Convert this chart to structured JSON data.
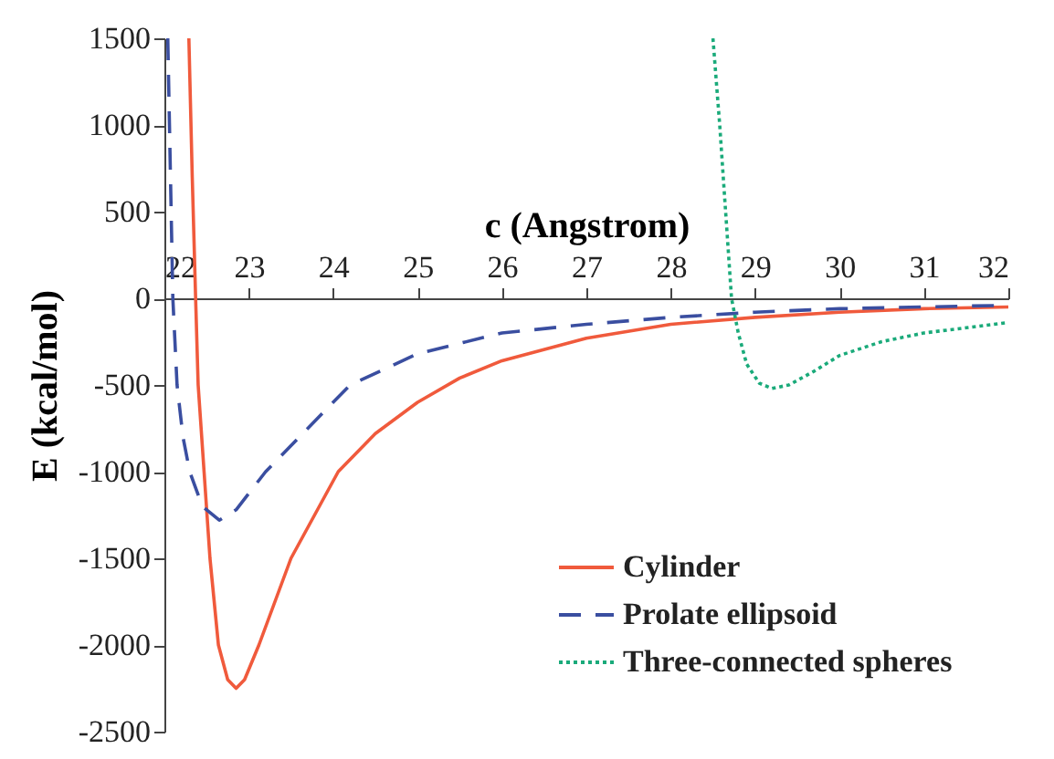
{
  "chart_data": {
    "type": "line",
    "xlabel": "c (Angstrom)",
    "ylabel": "E (kcal/mol)",
    "xlim": [
      22,
      32
    ],
    "ylim": [
      -2500,
      1500
    ],
    "xticks": [
      22,
      23,
      24,
      25,
      26,
      27,
      28,
      29,
      30,
      31,
      32
    ],
    "yticks": [
      -2500,
      -2000,
      -1500,
      -1000,
      -500,
      0,
      500,
      1000,
      1500
    ],
    "legend": "bottom right",
    "grid": false,
    "marker": "none",
    "series": [
      {
        "name": "Cylinder",
        "color": "#f05a3c",
        "line_style": "solid",
        "x": [
          22.29,
          22.33,
          22.37,
          22.4,
          22.47,
          22.54,
          22.64,
          22.75,
          22.85,
          22.95,
          23.12,
          23.5,
          24.06,
          24.5,
          25,
          25.5,
          26,
          27,
          28,
          29,
          30,
          31,
          32
        ],
        "values": [
          1500,
          700,
          0,
          -500,
          -1000,
          -1500,
          -2000,
          -2200,
          -2250,
          -2200,
          -2000,
          -1500,
          -1000,
          -780,
          -600,
          -460,
          -360,
          -230,
          -150,
          -110,
          -80,
          -60,
          -50
        ]
      },
      {
        "name": "Prolate ellipsoid",
        "color": "#3a4ea0",
        "line_style": "dashed",
        "x": [
          22.04,
          22.06,
          22.08,
          22.1,
          22.15,
          22.22,
          22.3,
          22.45,
          22.65,
          22.85,
          23.2,
          23.7,
          24.2,
          25,
          26,
          27,
          28,
          29,
          30,
          31,
          32
        ],
        "values": [
          1500,
          1000,
          500,
          0,
          -500,
          -800,
          -1000,
          -1200,
          -1280,
          -1220,
          -1000,
          -750,
          -500,
          -320,
          -200,
          -150,
          -110,
          -80,
          -60,
          -50,
          -40
        ]
      },
      {
        "name": "Three-connected spheres",
        "color": "#1aaa7a",
        "line_style": "dotted",
        "x": [
          28.5,
          28.58,
          28.65,
          28.72,
          28.8,
          28.9,
          29.05,
          29.2,
          29.4,
          29.7,
          30,
          30.5,
          31,
          31.5,
          32
        ],
        "values": [
          1500,
          1000,
          500,
          0,
          -200,
          -380,
          -490,
          -520,
          -500,
          -420,
          -330,
          -250,
          -200,
          -170,
          -140
        ]
      }
    ]
  }
}
